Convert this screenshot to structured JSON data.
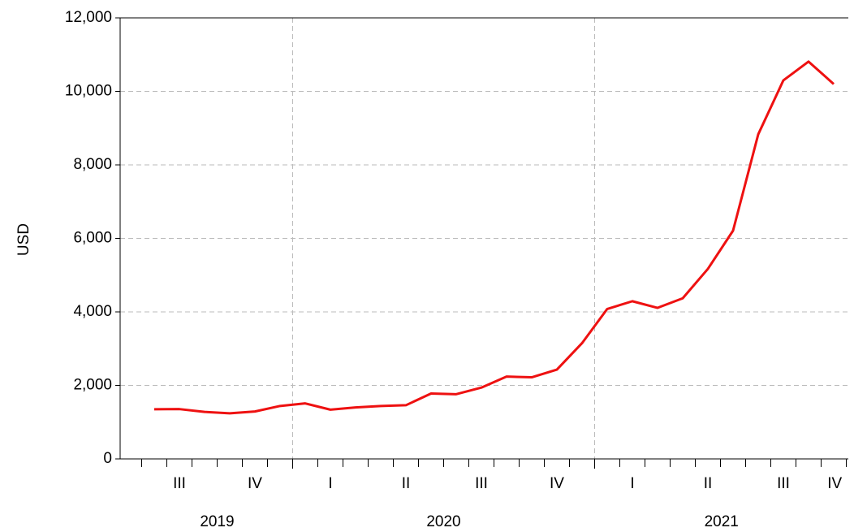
{
  "chart_data": {
    "type": "line",
    "y_label": "USD",
    "categories": [
      null,
      null,
      null,
      null,
      null,
      null,
      null,
      null,
      null,
      null,
      null,
      null,
      null,
      null,
      null,
      null,
      null,
      null,
      null,
      null,
      null,
      null,
      null,
      null,
      null,
      null,
      null,
      null
    ],
    "quarter_labels": [
      "III",
      "IV",
      "I",
      "II",
      "III",
      "IV",
      "I",
      "II",
      "III",
      "IV"
    ],
    "year_labels": [
      "2019",
      "2020",
      "2021"
    ],
    "series": [
      {
        "name": "USD",
        "color": "#ee1111",
        "values": [
          1350,
          1355,
          1280,
          1240,
          1290,
          1440,
          1510,
          1340,
          1400,
          1440,
          1460,
          1780,
          1760,
          1940,
          2240,
          2220,
          2430,
          3150,
          4080,
          4290,
          4110,
          4370,
          5170,
          6210,
          8830,
          10300,
          10810,
          10200
        ]
      }
    ],
    "ylim": [
      0,
      12000
    ],
    "yticks": [
      0,
      {
        "value": 2000,
        "label": "2,000"
      },
      {
        "value": 4000,
        "label": "4,000"
      },
      {
        "value": 6000,
        "label": "6,000"
      },
      {
        "value": 8000,
        "label": "8,000"
      },
      {
        "value": 10000,
        "label": "10,000"
      },
      {
        "value": 12000,
        "label": "12,000"
      }
    ],
    "grid": true
  }
}
